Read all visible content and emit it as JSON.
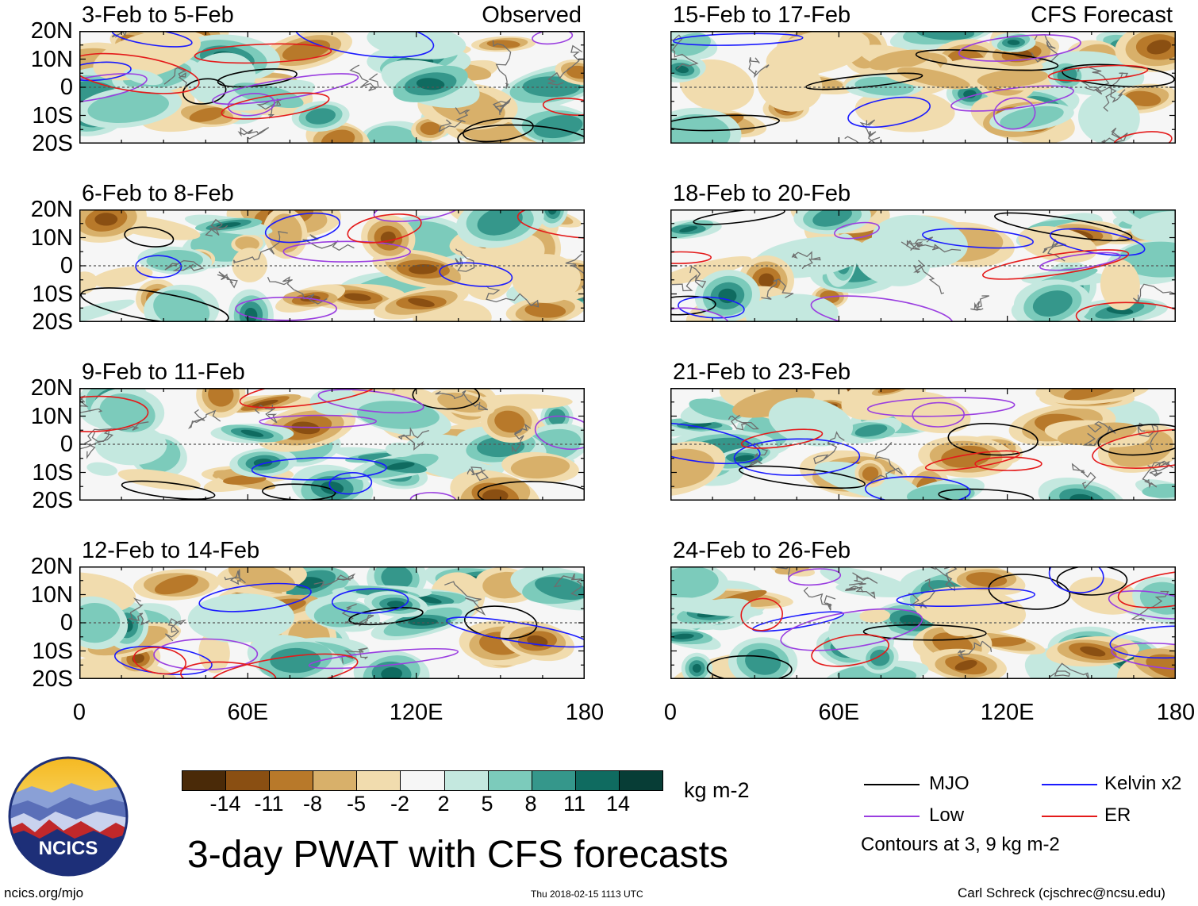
{
  "chart_data": {
    "type": "heatmap",
    "title": "3-day PWAT with CFS forecasts",
    "units": "kg m-2",
    "left_column_label": "Observed",
    "right_column_label": "CFS Forecast",
    "y_ticks": [
      "20N",
      "10N",
      "0",
      "10S",
      "20S"
    ],
    "x_ticks": [
      "0",
      "60E",
      "120E",
      "180"
    ],
    "lat_range": [
      -20,
      20
    ],
    "lon_range": [
      0,
      180
    ],
    "panels": [
      {
        "title": "3-Feb to 5-Feb",
        "column": "Observed"
      },
      {
        "title": "6-Feb to 8-Feb",
        "column": "Observed"
      },
      {
        "title": "9-Feb to 11-Feb",
        "column": "Observed"
      },
      {
        "title": "12-Feb to 14-Feb",
        "column": "Observed"
      },
      {
        "title": "15-Feb to 17-Feb",
        "column": "CFS Forecast"
      },
      {
        "title": "18-Feb to 20-Feb",
        "column": "CFS Forecast"
      },
      {
        "title": "21-Feb to 23-Feb",
        "column": "CFS Forecast"
      },
      {
        "title": "24-Feb to 26-Feb",
        "column": "CFS Forecast"
      }
    ],
    "colorbar": {
      "ticks": [
        "-14",
        "-11",
        "-8",
        "-5",
        "-2",
        "2",
        "5",
        "8",
        "11",
        "14"
      ],
      "colors": [
        "#4a2a08",
        "#8a4f12",
        "#b8792a",
        "#d8b06a",
        "#f1dcae",
        "#f6f6f6",
        "#c4e8df",
        "#7ccbbb",
        "#35978b",
        "#0f6b60",
        "#073d36"
      ]
    },
    "legend": [
      {
        "name": "MJO",
        "color": "#000000"
      },
      {
        "name": "Kelvin x2",
        "color": "#1a1aff"
      },
      {
        "name": "Low",
        "color": "#9a3ee0"
      },
      {
        "name": "ER",
        "color": "#e41a1a"
      }
    ],
    "contour_note": "Contours at 3, 9 kg m-2"
  },
  "footer": {
    "logo_text": "NCICS",
    "url": "ncics.org/mjo",
    "timestamp": "Thu 2018-02-15 1113 UTC",
    "credit": "Carl Schreck (cjschrec@ncsu.edu)"
  }
}
